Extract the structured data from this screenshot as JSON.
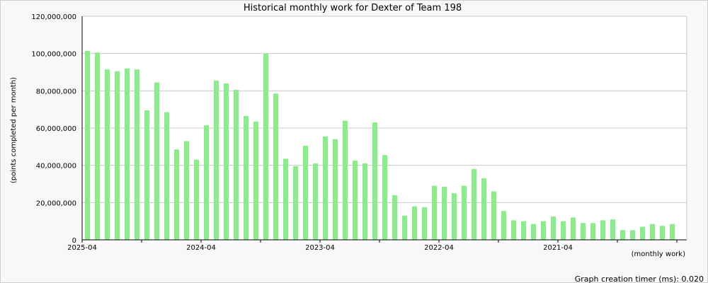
{
  "chart_data": {
    "type": "bar",
    "title": "Historical monthly work for Dexter of Team 198",
    "ylabel": "(points completed per month)",
    "xlabel": "(monthly work)",
    "ylim": [
      0,
      120000000
    ],
    "yticks": [
      0,
      20000000,
      40000000,
      60000000,
      80000000,
      100000000,
      120000000
    ],
    "ytick_labels": [
      "0",
      "20,000,000",
      "40,000,000",
      "60,000,000",
      "80,000,000",
      "100,000,000",
      "120,000,000"
    ],
    "xtick_labels": [
      {
        "label": "2025-04",
        "index": 0
      },
      {
        "label": "2024-04",
        "index": 12
      },
      {
        "label": "2023-04",
        "index": 24
      },
      {
        "label": "2022-04",
        "index": 36
      },
      {
        "label": "2021-04",
        "index": 48
      }
    ],
    "grid": true,
    "bar_color": "#90e890",
    "values": [
      101500000,
      100500000,
      91500000,
      90500000,
      92000000,
      91500000,
      69500000,
      84500000,
      68500000,
      48500000,
      53000000,
      43000000,
      61500000,
      85500000,
      84000000,
      80500000,
      66500000,
      63500000,
      100000000,
      78500000,
      43500000,
      39500000,
      50500000,
      41000000,
      55500000,
      54000000,
      64000000,
      42500000,
      41000000,
      63000000,
      45500000,
      24000000,
      13000000,
      18000000,
      17500000,
      29000000,
      28500000,
      25000000,
      29000000,
      38000000,
      33000000,
      26000000,
      15500000,
      10500000,
      10000000,
      8500000,
      10000000,
      12500000,
      10000000,
      12000000,
      9000000,
      9000000,
      10500000,
      11000000,
      5200000,
      5200000,
      7000000,
      8500000,
      7500000,
      8500000
    ]
  },
  "footer": {
    "timer_label": "Graph creation timer (ms): 0.020"
  }
}
